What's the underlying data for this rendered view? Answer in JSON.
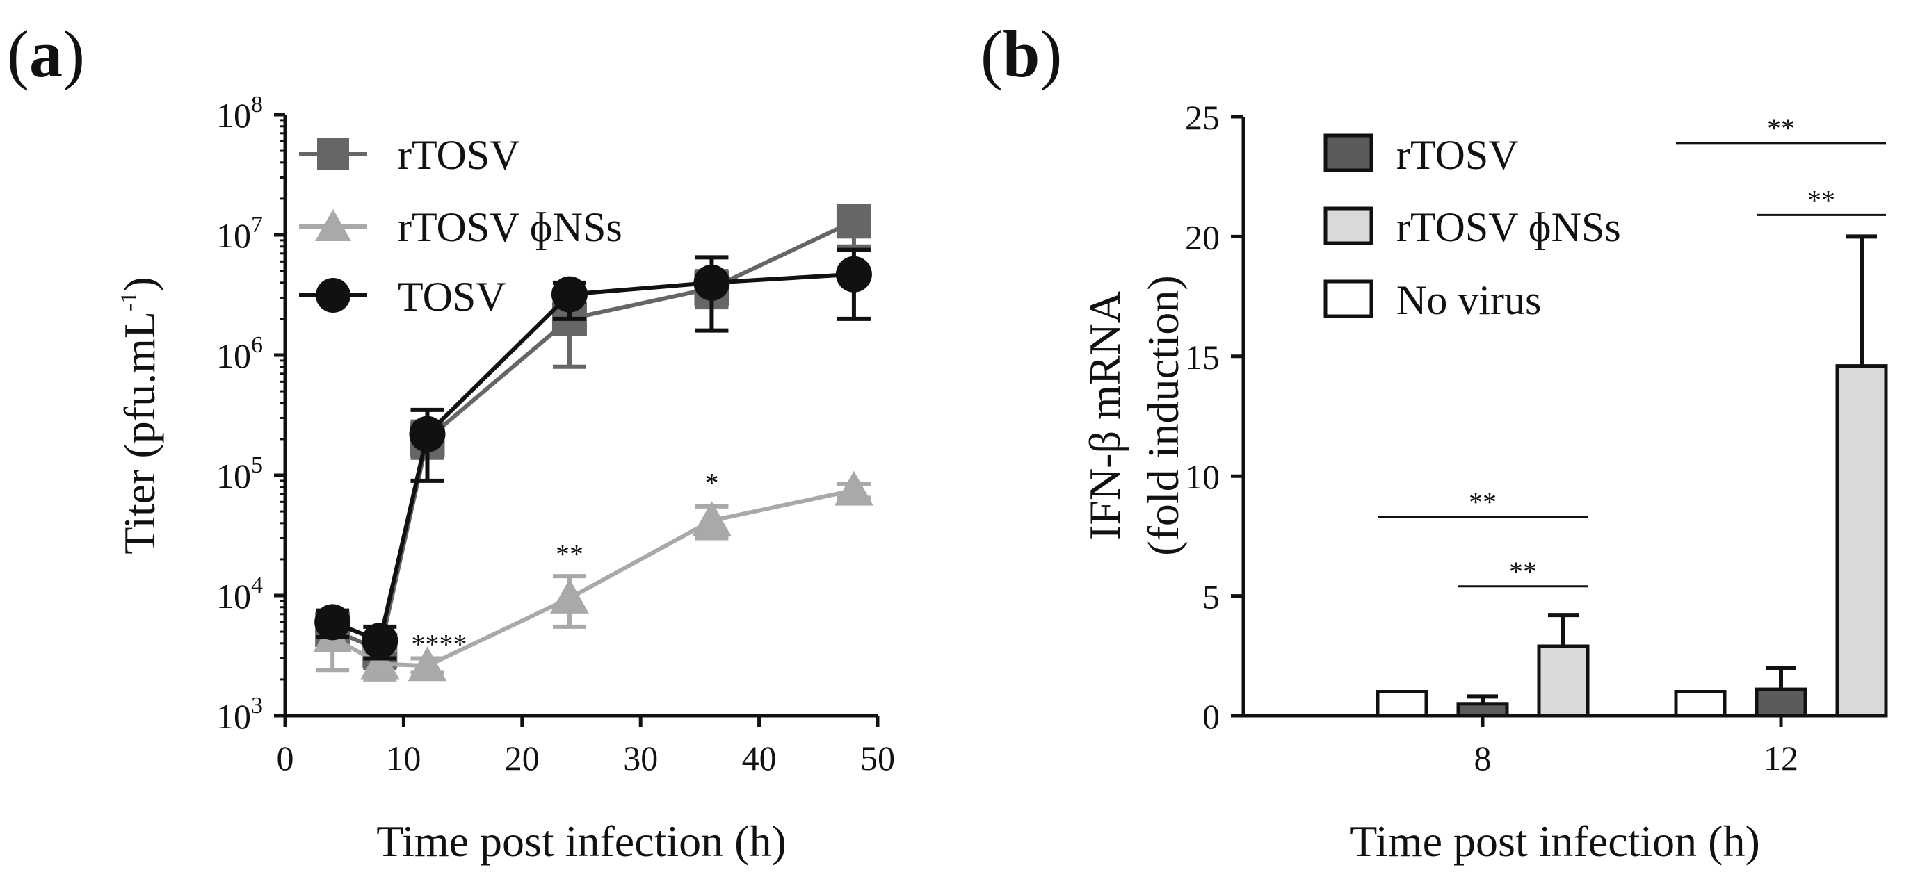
{
  "panels": {
    "a": {
      "open": "(",
      "letter": "a",
      "close": ")"
    },
    "b": {
      "open": "(",
      "letter": "b",
      "close": ")"
    }
  },
  "colors": {
    "rTOSV": "#666666",
    "rTOSV_dNSs": "#a9a9a9",
    "TOSV": "#111111",
    "bar_rTOSV": "#5b5b5b",
    "bar_rTOSV_dNSs": "#d9d9d9",
    "bar_no_virus": "#ffffff"
  },
  "chart_data": [
    {
      "id": "a",
      "type": "line",
      "xlabel": "Time post infection (h)",
      "ylabel": {
        "main": "Titer (pfu.mL",
        "exp": "-1",
        "close": ")"
      },
      "xlim": [
        0,
        50
      ],
      "xticks": [
        0,
        10,
        20,
        30,
        40,
        50
      ],
      "xtick_labels": [
        "0",
        "10",
        "20",
        "30",
        "40",
        "50"
      ],
      "ylog": true,
      "ylim": [
        1000,
        100000000
      ],
      "yticks": [
        {
          "value": 1000,
          "base": "10",
          "exp": "3"
        },
        {
          "value": 10000,
          "base": "10",
          "exp": "4"
        },
        {
          "value": 100000,
          "base": "10",
          "exp": "5"
        },
        {
          "value": 1000000,
          "base": "10",
          "exp": "6"
        },
        {
          "value": 10000000,
          "base": "10",
          "exp": "7"
        },
        {
          "value": 100000000,
          "base": "10",
          "exp": "8"
        }
      ],
      "series": [
        {
          "name": "rTOSV",
          "marker": "square",
          "color": "#666666",
          "x": [
            4,
            8,
            12,
            24,
            36,
            48
          ],
          "y": [
            5200,
            3500,
            200000,
            2000000,
            3600000,
            13000000
          ],
          "err_low": [
            4000,
            2500,
            140000,
            800000,
            2500000,
            8000000
          ],
          "err_high": [
            6500,
            4500,
            280000,
            3000000,
            5000000,
            17000000
          ]
        },
        {
          "name": "rTOSV ɸNSs",
          "marker": "triangle",
          "color": "#a9a9a9",
          "x": [
            4,
            8,
            12,
            24,
            36,
            48
          ],
          "y": [
            4500,
            2700,
            2600,
            9500,
            42000,
            75000
          ],
          "err_low": [
            2400,
            2000,
            2300,
            5500,
            30000,
            65000
          ],
          "err_high": [
            6000,
            3500,
            3000,
            14500,
            55000,
            85000
          ]
        },
        {
          "name": "TOSV",
          "marker": "circle",
          "color": "#111111",
          "x": [
            4,
            8,
            12,
            24,
            36,
            48
          ],
          "y": [
            6000,
            4200,
            220000,
            3200000,
            4000000,
            4700000
          ],
          "err_low": [
            4500,
            3000,
            90000,
            2000000,
            1600000,
            2000000
          ],
          "err_high": [
            7500,
            5500,
            350000,
            4000000,
            6500000,
            7500000
          ]
        }
      ],
      "annotations": [
        {
          "text": "****",
          "x": 13,
          "y": 3300
        },
        {
          "text": "**",
          "x": 24,
          "y": 18500
        },
        {
          "text": "*",
          "x": 36,
          "y": 72000
        }
      ],
      "legend_position": "top-left"
    },
    {
      "id": "b",
      "type": "bar",
      "xlabel": "Time post infection (h)",
      "ylabel": {
        "line1": "IFN-β mRNA",
        "line2": "(fold induction)"
      },
      "ylim": [
        0,
        25
      ],
      "yticks": [
        0,
        5,
        10,
        15,
        20,
        25
      ],
      "ytick_labels": [
        "0",
        "5",
        "10",
        "15",
        "20",
        "25"
      ],
      "categories": [
        "8",
        "12"
      ],
      "series": [
        {
          "name": "No virus",
          "color": "#ffffff",
          "values": [
            1.0,
            1.0
          ],
          "errors": [
            0,
            0
          ]
        },
        {
          "name": "rTOSV",
          "color": "#5b5b5b",
          "values": [
            0.5,
            1.1
          ],
          "errors": [
            0.3,
            0.9
          ]
        },
        {
          "name": "rTOSV ɸNSs",
          "color": "#d9d9d9",
          "values": [
            2.9,
            14.6
          ],
          "errors": [
            1.3,
            5.4
          ]
        }
      ],
      "legend": [
        "rTOSV",
        "rTOSV ɸNSs",
        "No virus"
      ],
      "significance": [
        {
          "text": "**",
          "group": "8",
          "from_series": "No virus",
          "to_series": "rTOSV ɸNSs",
          "y": 8.3
        },
        {
          "text": "**",
          "group": "8",
          "from_series": "rTOSV",
          "to_series": "rTOSV ɸNSs",
          "y": 5.4
        },
        {
          "text": "**",
          "group": "12",
          "from_series": "No virus",
          "to_series": "rTOSV ɸNSs",
          "y": 23.9
        },
        {
          "text": "**",
          "group": "12",
          "from_series": "rTOSV",
          "to_series": "rTOSV ɸNSs",
          "y": 20.9
        }
      ],
      "legend_position": "top-left"
    }
  ]
}
